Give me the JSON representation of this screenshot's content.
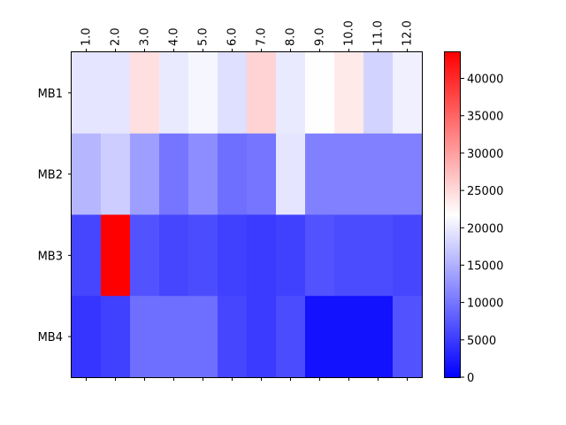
{
  "chart_data": {
    "type": "heatmap",
    "x_labels": [
      "1.0",
      "2.0",
      "3.0",
      "4.0",
      "5.0",
      "6.0",
      "7.0",
      "8.0",
      "9.0",
      "10.0",
      "11.0",
      "12.0"
    ],
    "y_labels": [
      "MB1",
      "MB2",
      "MB3",
      "MB4"
    ],
    "values": [
      [
        19500,
        19500,
        24500,
        20000,
        21000,
        19000,
        25500,
        20000,
        21800,
        23500,
        18000,
        20500
      ],
      [
        15500,
        17500,
        13500,
        10000,
        12000,
        9500,
        10000,
        19500,
        11000,
        11000,
        11000,
        11000
      ],
      [
        6000,
        43500,
        7000,
        6000,
        6500,
        5500,
        5000,
        5500,
        7000,
        6500,
        6500,
        6000
      ],
      [
        4500,
        5500,
        9500,
        9500,
        9500,
        6000,
        5000,
        6500,
        1500,
        1500,
        1500,
        7000
      ]
    ],
    "x_tick_position": "top",
    "colormap": "bwr",
    "colormap_colors": {
      "low": "#0000ff",
      "mid": "#ffffff",
      "high": "#ff0000"
    },
    "vmin": 0,
    "vmax": 43500,
    "colorbar_ticks": [
      "0",
      "5000",
      "10000",
      "15000",
      "20000",
      "25000",
      "30000",
      "35000",
      "40000"
    ],
    "colorbar_tick_values": [
      0,
      5000,
      10000,
      15000,
      20000,
      25000,
      30000,
      35000,
      40000
    ],
    "title": "",
    "xlabel": "",
    "ylabel": ""
  }
}
